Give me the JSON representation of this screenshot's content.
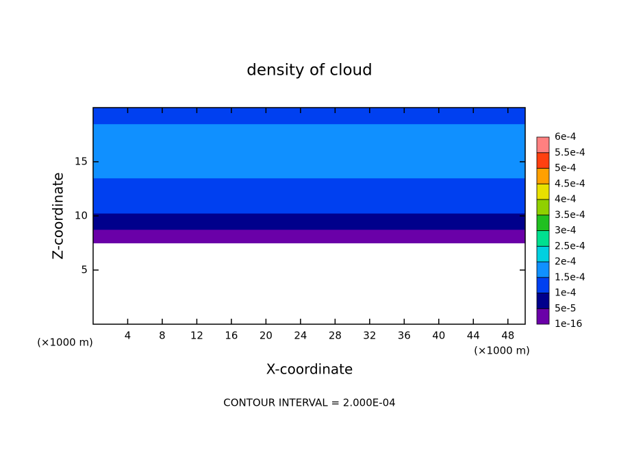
{
  "chart_data": {
    "type": "contour",
    "title": "density of cloud",
    "xlabel": "X-coordinate",
    "ylabel": "Z-coordinate",
    "x_unit": "(×1000 m)",
    "y_unit": "(×1000 m)",
    "footnote": "CONTOUR INTERVAL = 2.000E-04",
    "xlim": [
      0,
      50
    ],
    "ylim": [
      0,
      20
    ],
    "xticks": [
      4,
      8,
      12,
      16,
      20,
      24,
      28,
      32,
      36,
      40,
      44,
      48
    ],
    "yticks": [
      5,
      10,
      15
    ],
    "z": [
      7.5,
      8,
      8.5,
      9,
      9.5,
      10,
      10.5,
      11,
      12,
      13,
      14,
      15,
      16,
      17,
      18,
      19,
      20
    ],
    "values": [
      2e-05,
      3e-05,
      4e-05,
      6e-05,
      7e-05,
      9e-05,
      0.0001,
      0.00011,
      0.00012,
      0.00013,
      0.00015,
      0.00016,
      0.00016,
      0.00015,
      0.00015,
      0.00014,
      0.00013
    ],
    "colorbar": {
      "ticks": [
        {
          "value": 1e-16,
          "label": "1e-16"
        },
        {
          "value": 5e-05,
          "label": "5e-5"
        },
        {
          "value": 0.0001,
          "label": "1e-4"
        },
        {
          "value": 0.00015,
          "label": "1.5e-4"
        },
        {
          "value": 0.0002,
          "label": "2e-4"
        },
        {
          "value": 0.00025,
          "label": "2.5e-4"
        },
        {
          "value": 0.0003,
          "label": "3e-4"
        },
        {
          "value": 0.00035,
          "label": "3.5e-4"
        },
        {
          "value": 0.0004,
          "label": "4e-4"
        },
        {
          "value": 0.00045,
          "label": "4.5e-4"
        },
        {
          "value": 0.0005,
          "label": "5e-4"
        },
        {
          "value": 0.00055,
          "label": "5.5e-4"
        },
        {
          "value": 0.0006,
          "label": "6e-4"
        }
      ],
      "colors": [
        "#6a00a8",
        "#00008c",
        "#0040f0",
        "#1090ff",
        "#00d0e0",
        "#00e090",
        "#20c020",
        "#90d000",
        "#e8e000",
        "#ffa000",
        "#ff4010",
        "#ff8080"
      ]
    }
  }
}
